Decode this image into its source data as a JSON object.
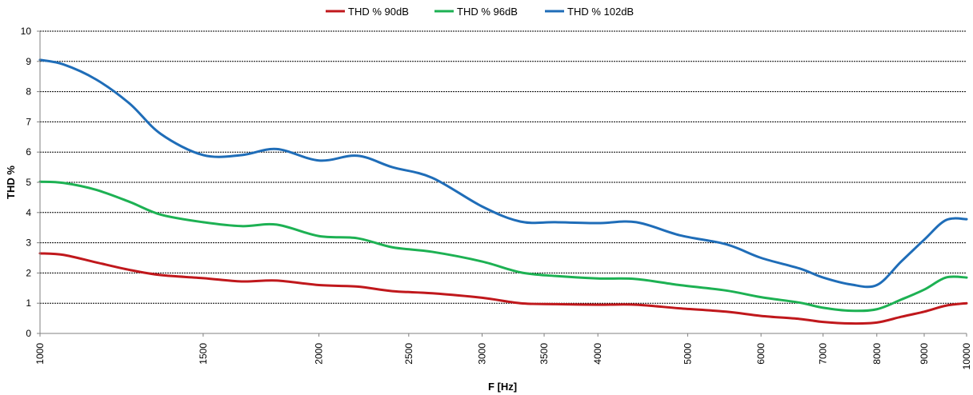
{
  "chart_data": {
    "type": "line",
    "title": "",
    "xlabel": "F [Hz]",
    "ylabel": "THD %",
    "x_scale": "log",
    "xlim": [
      1000,
      10000
    ],
    "ylim": [
      0,
      10
    ],
    "grid": true,
    "legend_position": "top",
    "x_ticks": [
      1000,
      1500,
      2000,
      2500,
      3000,
      3500,
      4000,
      5000,
      6000,
      7000,
      8000,
      9000,
      10000
    ],
    "x_tick_labels": [
      "1000",
      "1500",
      "2000",
      "2500",
      "3000",
      "3500",
      "4000",
      "5000",
      "6000",
      "7000",
      "8000",
      "9000",
      "10000"
    ],
    "y_ticks": [
      0,
      1,
      2,
      3,
      4,
      5,
      6,
      7,
      8,
      9,
      10
    ],
    "y_tick_labels": [
      "0",
      "1",
      "2",
      "3",
      "4",
      "5",
      "6",
      "7",
      "8",
      "9",
      "10"
    ],
    "series": [
      {
        "name": "THD % 90dB",
        "color": "#c0181c",
        "x": [
          1000,
          1060,
          1150,
          1250,
          1350,
          1500,
          1650,
          1800,
          2000,
          2200,
          2400,
          2650,
          3000,
          3300,
          3600,
          4000,
          4400,
          4900,
          5500,
          6000,
          6600,
          7000,
          7500,
          8000,
          8500,
          9000,
          9500,
          10000
        ],
        "values": [
          2.65,
          2.6,
          2.35,
          2.1,
          1.93,
          1.83,
          1.72,
          1.75,
          1.6,
          1.55,
          1.4,
          1.33,
          1.18,
          1.0,
          0.97,
          0.95,
          0.95,
          0.83,
          0.72,
          0.58,
          0.48,
          0.38,
          0.33,
          0.36,
          0.55,
          0.72,
          0.92,
          1.0
        ]
      },
      {
        "name": "THD % 96dB",
        "color": "#1db153",
        "x": [
          1000,
          1060,
          1150,
          1250,
          1350,
          1500,
          1650,
          1800,
          2000,
          2200,
          2400,
          2650,
          3000,
          3300,
          3600,
          4000,
          4400,
          4900,
          5500,
          6000,
          6600,
          7000,
          7500,
          8000,
          8500,
          9000,
          9500,
          10000
        ],
        "values": [
          5.02,
          4.98,
          4.75,
          4.35,
          3.93,
          3.68,
          3.55,
          3.6,
          3.22,
          3.15,
          2.85,
          2.7,
          2.38,
          2.02,
          1.9,
          1.82,
          1.8,
          1.6,
          1.42,
          1.2,
          1.02,
          0.85,
          0.75,
          0.8,
          1.12,
          1.45,
          1.85,
          1.85
        ]
      },
      {
        "name": "THD % 102dB",
        "color": "#1f6db8",
        "x": [
          1000,
          1060,
          1150,
          1250,
          1350,
          1500,
          1650,
          1800,
          2000,
          2200,
          2400,
          2650,
          3000,
          3300,
          3600,
          4000,
          4400,
          4900,
          5500,
          6000,
          6600,
          7000,
          7500,
          8000,
          8500,
          9000,
          9500,
          10000
        ],
        "values": [
          9.05,
          8.9,
          8.4,
          7.6,
          6.6,
          5.9,
          5.9,
          6.1,
          5.72,
          5.88,
          5.5,
          5.15,
          4.2,
          3.7,
          3.68,
          3.65,
          3.68,
          3.25,
          2.95,
          2.5,
          2.15,
          1.85,
          1.62,
          1.6,
          2.38,
          3.1,
          3.75,
          3.78
        ]
      }
    ]
  }
}
